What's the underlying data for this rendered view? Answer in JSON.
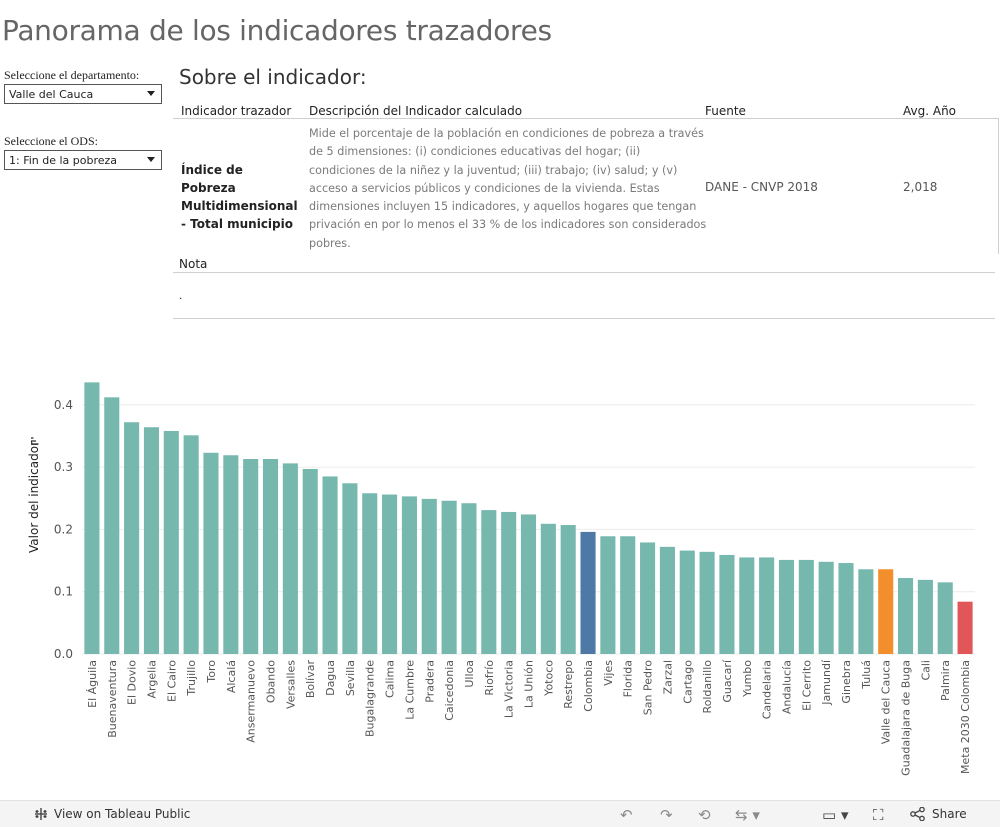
{
  "page": {
    "title": "Panorama de los indicadores trazadores"
  },
  "filters": {
    "departamento": {
      "label": "Seleccione el departamento:",
      "value": "Valle del Cauca"
    },
    "ods": {
      "label": "Seleccione el ODS:",
      "value": "1: Fin de la pobreza"
    }
  },
  "indicator": {
    "section_title": "Sobre el indicador:",
    "headers": {
      "indicador": "Indicador trazador",
      "descripcion": "Descripción del Indicador calculado",
      "fuente": "Fuente",
      "avg": "Avg. Año"
    },
    "name": "Índice de Pobreza Multidimensional - Total municipio",
    "description": "Mide el porcentaje de la población en condiciones de pobreza a través de 5 dimensiones: (i) condiciones educativas del hogar; (ii) condiciones de la niñez y la juventud; (iii) trabajo; (iv) salud; y (v) acceso a servicios públicos y condiciones de la vivienda. Estas dimensiones incluyen 15 indicadores, y aquellos hogares que tengan privación en por lo menos el 33 % de los indicadores son considerados pobres.",
    "source": "DANE - CNVP 2018",
    "avg_year": "2,018",
    "nota_label": "Nota",
    "nota_value": "."
  },
  "chart_data": {
    "type": "bar",
    "ylabel": "Valor del indicador",
    "ylim": [
      0,
      0.44
    ],
    "yticks": [
      0.0,
      0.1,
      0.2,
      0.3,
      0.4
    ],
    "ytick_labels": [
      "0.0",
      "0.1",
      "0.2",
      "0.3",
      "0.4"
    ],
    "grid": true,
    "colors": {
      "default": "#76b8ae",
      "Colombia": "#4e79a7",
      "Valle del Cauca": "#f28e2b",
      "Meta 2030 Colombia": "#e15759"
    },
    "categories": [
      "El Águila",
      "Buenaventura",
      "El Dovio",
      "Argelia",
      "El Cairo",
      "Trujillo",
      "Toro",
      "Alcalá",
      "Ansermanuevo",
      "Obando",
      "Versalles",
      "Bolívar",
      "Dagua",
      "Sevilla",
      "Bugalagrande",
      "Calima",
      "La Cumbre",
      "Pradera",
      "Caicedonia",
      "Ulloa",
      "Riofrío",
      "La Victoria",
      "La Unión",
      "Yotoco",
      "Restrepo",
      "Colombia",
      "Vijes",
      "Florida",
      "San Pedro",
      "Zarzal",
      "Cartago",
      "Roldanillo",
      "Guacarí",
      "Yumbo",
      "Candelaria",
      "Andalucía",
      "El Cerrito",
      "Jamundí",
      "Ginebra",
      "Tuluá",
      "Valle del Cauca",
      "Guadalajara de Buga",
      "Cali",
      "Palmira",
      "Meta 2030 Colombia"
    ],
    "values": [
      0.436,
      0.412,
      0.372,
      0.364,
      0.358,
      0.351,
      0.323,
      0.319,
      0.313,
      0.313,
      0.306,
      0.297,
      0.285,
      0.274,
      0.258,
      0.256,
      0.253,
      0.249,
      0.246,
      0.242,
      0.231,
      0.228,
      0.224,
      0.209,
      0.207,
      0.196,
      0.189,
      0.189,
      0.179,
      0.172,
      0.166,
      0.164,
      0.159,
      0.155,
      0.155,
      0.151,
      0.151,
      0.148,
      0.146,
      0.136,
      0.136,
      0.122,
      0.119,
      0.115,
      0.084
    ]
  },
  "footer": {
    "view_label": "View on Tableau Public",
    "share_label": "Share"
  }
}
